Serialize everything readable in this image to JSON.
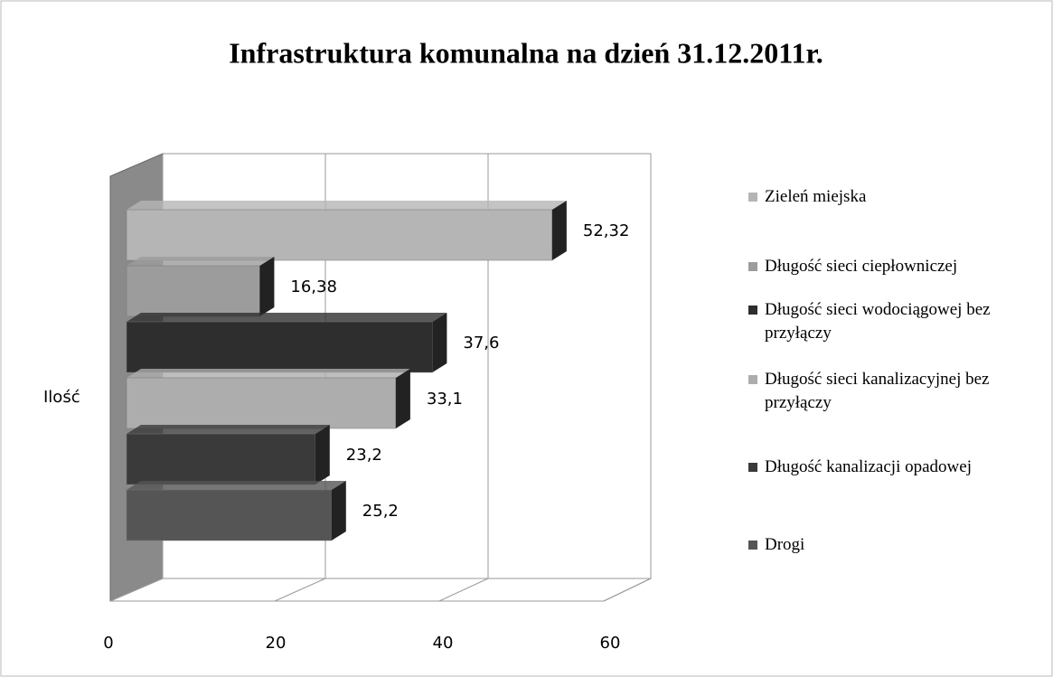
{
  "chart_data": {
    "type": "bar",
    "orientation": "horizontal",
    "title": "Infrastruktura komunalna na dzień 31.12.2011r.",
    "categories": [
      "Ilość"
    ],
    "series": [
      {
        "name": "Zieleń miejska",
        "color": "#b5b5b5",
        "values": [
          52.32
        ],
        "value_labels": [
          "52,32"
        ]
      },
      {
        "name": "Długość sieci ciepłowniczej",
        "color": "#9c9c9c",
        "values": [
          16.38
        ],
        "value_labels": [
          "16,38"
        ]
      },
      {
        "name": "Długość sieci wodociągowej bez przyłączy",
        "color": "#2e2e2e",
        "values": [
          37.6
        ],
        "value_labels": [
          "37,6"
        ]
      },
      {
        "name": "Długość sieci kanalizacyjnej bez przyłączy",
        "color": "#adadad",
        "values": [
          33.1
        ],
        "value_labels": [
          "33,1"
        ]
      },
      {
        "name": "Długość kanalizacji opadowej",
        "color": "#3a3a3a",
        "values": [
          23.2
        ],
        "value_labels": [
          "23,2"
        ]
      },
      {
        "name": "Drogi",
        "color": "#555555",
        "values": [
          25.2
        ],
        "value_labels": [
          "25,2"
        ]
      }
    ],
    "xlim": [
      0,
      60
    ],
    "xticks": [
      0,
      20,
      40,
      60
    ],
    "grid": true,
    "legend": "right"
  }
}
